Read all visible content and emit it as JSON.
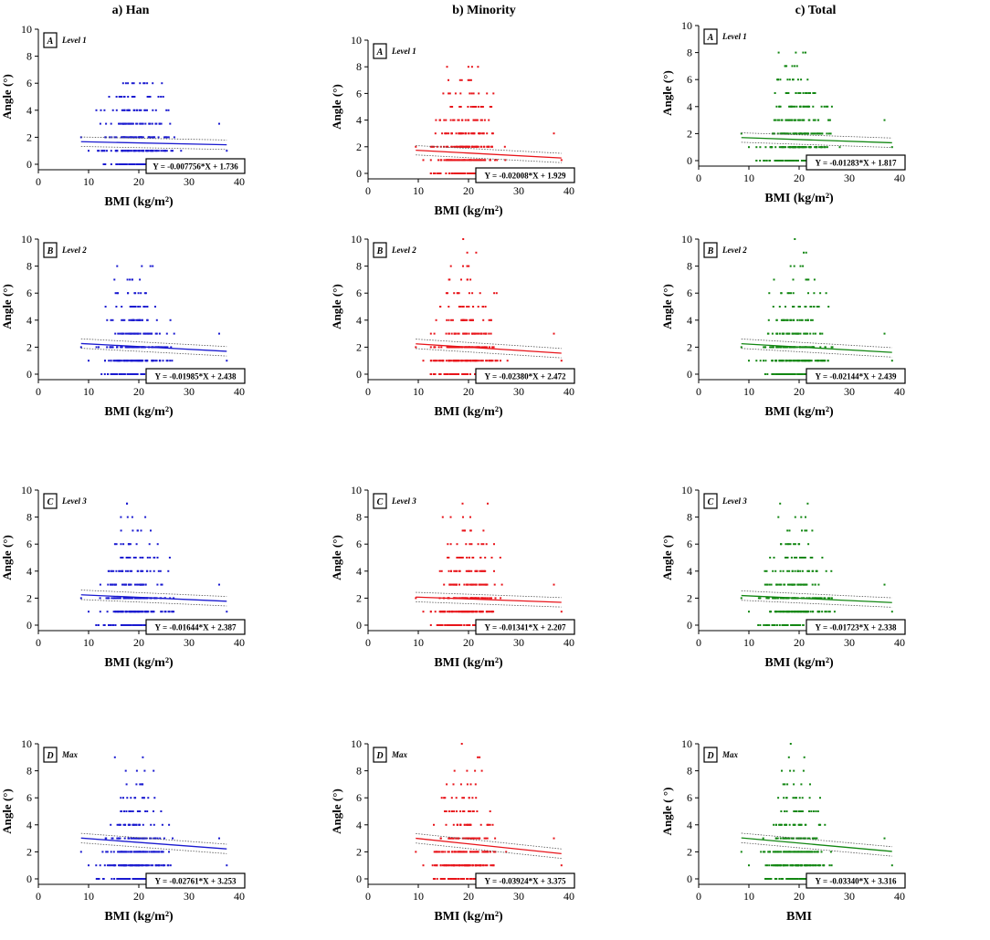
{
  "column_titles": [
    "a) Han",
    "b) Minority",
    "c) Total"
  ],
  "colors": {
    "Han": "#1a1ad0",
    "Minority": "#e8141a",
    "Total": "#128712"
  },
  "chart_data": [
    {
      "type": "scatter",
      "col": 0,
      "row": 0,
      "group": "Han",
      "panel": "A",
      "level": "Level 1",
      "ylabel": "Angle (°)",
      "xlabel": "BMI (kg/m²)",
      "xlim": [
        0,
        40
      ],
      "ylim": [
        0,
        10
      ],
      "xticks": [
        0,
        10,
        20,
        30,
        40
      ],
      "yticks": [
        0,
        2,
        4,
        6,
        8,
        10
      ],
      "slope": -0.007756,
      "intercept": 1.736,
      "x_fit": [
        8.5,
        37.5
      ],
      "x_extent": [
        8.5,
        37.5
      ],
      "y_max_points": 6,
      "equation": "Y = -0.007756*X + 1.736"
    },
    {
      "type": "scatter",
      "col": 1,
      "row": 0,
      "group": "Minority",
      "panel": "A",
      "level": "Level 1",
      "ylabel": "Angle (°)",
      "xlabel": "BMI (kg/m²)",
      "xlim": [
        0,
        40
      ],
      "ylim": [
        0,
        10
      ],
      "xticks": [
        0,
        10,
        20,
        30,
        40
      ],
      "yticks": [
        0,
        2,
        4,
        6,
        8,
        10
      ],
      "slope": -0.02008,
      "intercept": 1.929,
      "x_fit": [
        9.5,
        38.5
      ],
      "x_extent": [
        9.5,
        38.5
      ],
      "y_max_points": 8,
      "equation": "Y = -0.02008*X + 1.929"
    },
    {
      "type": "scatter",
      "col": 2,
      "row": 0,
      "group": "Total",
      "panel": "A",
      "level": "Level 1",
      "ylabel": "Angle (°)",
      "xlabel": "BMI (kg/m²)",
      "xlim": [
        0,
        40
      ],
      "ylim": [
        0,
        10
      ],
      "xticks": [
        0,
        10,
        20,
        30,
        40
      ],
      "yticks": [
        0,
        2,
        4,
        6,
        8,
        10
      ],
      "slope": -0.01283,
      "intercept": 1.817,
      "x_fit": [
        8.5,
        38.5
      ],
      "x_extent": [
        8.5,
        38.5
      ],
      "y_max_points": 8,
      "equation": "Y = -0.01283*X + 1.817"
    },
    {
      "type": "scatter",
      "col": 0,
      "row": 1,
      "group": "Han",
      "panel": "B",
      "level": "Level 2",
      "ylabel": "Angle (°)",
      "xlabel": "BMI (kg/m²)",
      "xlim": [
        0,
        40
      ],
      "ylim": [
        0,
        10
      ],
      "xticks": [
        0,
        10,
        20,
        30,
        40
      ],
      "yticks": [
        0,
        2,
        4,
        6,
        8,
        10
      ],
      "slope": -0.01985,
      "intercept": 2.438,
      "x_fit": [
        8.5,
        37.5
      ],
      "x_extent": [
        8.5,
        37.5
      ],
      "y_max_points": 8,
      "equation": "Y = -0.01985*X + 2.438"
    },
    {
      "type": "scatter",
      "col": 1,
      "row": 1,
      "group": "Minority",
      "panel": "B",
      "level": "Level 2",
      "ylabel": "Angle (°)",
      "xlabel": "BMI (kg/m²)",
      "xlim": [
        0,
        40
      ],
      "ylim": [
        0,
        10
      ],
      "xticks": [
        0,
        10,
        20,
        30,
        40
      ],
      "yticks": [
        0,
        2,
        4,
        6,
        8,
        10
      ],
      "slope": -0.0238,
      "intercept": 2.472,
      "x_fit": [
        9.5,
        38.5
      ],
      "x_extent": [
        9.5,
        38.5
      ],
      "y_max_points": 10,
      "equation": "Y = -0.02380*X + 2.472"
    },
    {
      "type": "scatter",
      "col": 2,
      "row": 1,
      "group": "Total",
      "panel": "B",
      "level": "Level 2",
      "ylabel": "Angle (°)",
      "xlabel": "BMI (kg/m²)",
      "xlim": [
        0,
        40
      ],
      "ylim": [
        0,
        10
      ],
      "xticks": [
        0,
        10,
        20,
        30,
        40
      ],
      "yticks": [
        0,
        2,
        4,
        6,
        8,
        10
      ],
      "slope": -0.02144,
      "intercept": 2.439,
      "x_fit": [
        8.5,
        38.5
      ],
      "x_extent": [
        8.5,
        38.5
      ],
      "y_max_points": 10,
      "equation": "Y = -0.02144*X + 2.439"
    },
    {
      "type": "scatter",
      "col": 0,
      "row": 2,
      "group": "Han",
      "panel": "C",
      "level": "Level 3",
      "ylabel": "Angle (°)",
      "xlabel": "BMI (kg/m²)",
      "xlim": [
        0,
        40
      ],
      "ylim": [
        0,
        10
      ],
      "xticks": [
        0,
        10,
        20,
        30,
        40
      ],
      "yticks": [
        0,
        2,
        4,
        6,
        8,
        10
      ],
      "slope": -0.01644,
      "intercept": 2.387,
      "x_fit": [
        8.5,
        37.5
      ],
      "x_extent": [
        8.5,
        37.5
      ],
      "y_max_points": 9,
      "equation": "Y = -0.01644*X + 2.387"
    },
    {
      "type": "scatter",
      "col": 1,
      "row": 2,
      "group": "Minority",
      "panel": "C",
      "level": "Level 3",
      "ylabel": "Angle (°)",
      "xlabel": "BMI (kg/m²)",
      "xlim": [
        0,
        40
      ],
      "ylim": [
        0,
        10
      ],
      "xticks": [
        0,
        10,
        20,
        30,
        40
      ],
      "yticks": [
        0,
        2,
        4,
        6,
        8,
        10
      ],
      "slope": -0.01341,
      "intercept": 2.207,
      "x_fit": [
        9.5,
        38.5
      ],
      "x_extent": [
        9.5,
        38.5
      ],
      "y_max_points": 9,
      "equation": "Y = -0.01341*X + 2.207"
    },
    {
      "type": "scatter",
      "col": 2,
      "row": 2,
      "group": "Total",
      "panel": "C",
      "level": "Level 3",
      "ylabel": "Angle (°)",
      "xlabel": "BMI (kg/m²)",
      "xlim": [
        0,
        40
      ],
      "ylim": [
        0,
        10
      ],
      "xticks": [
        0,
        10,
        20,
        30,
        40
      ],
      "yticks": [
        0,
        2,
        4,
        6,
        8,
        10
      ],
      "slope": -0.01723,
      "intercept": 2.338,
      "x_fit": [
        8.5,
        38.5
      ],
      "x_extent": [
        8.5,
        38.5
      ],
      "y_max_points": 9,
      "equation": "Y = -0.01723*X + 2.338"
    },
    {
      "type": "scatter",
      "col": 0,
      "row": 3,
      "group": "Han",
      "panel": "D",
      "level": "Max",
      "ylabel": "Angle (°)",
      "xlabel": "BMI (kg/m²)",
      "xlim": [
        0,
        40
      ],
      "ylim": [
        0,
        10
      ],
      "xticks": [
        0,
        10,
        20,
        30,
        40
      ],
      "yticks": [
        0,
        2,
        4,
        6,
        8,
        10
      ],
      "slope": -0.02761,
      "intercept": 3.253,
      "x_fit": [
        8.5,
        37.5
      ],
      "x_extent": [
        8.5,
        37.5
      ],
      "y_max_points": 9,
      "equation": "Y = -0.02761*X + 3.253"
    },
    {
      "type": "scatter",
      "col": 1,
      "row": 3,
      "group": "Minority",
      "panel": "D",
      "level": "Max",
      "ylabel": "Angle (°)",
      "xlabel": "BMI (kg/m²)",
      "xlim": [
        0,
        40
      ],
      "ylim": [
        0,
        10
      ],
      "xticks": [
        0,
        10,
        20,
        30,
        40
      ],
      "yticks": [
        0,
        2,
        4,
        6,
        8,
        10
      ],
      "slope": -0.03924,
      "intercept": 3.375,
      "x_fit": [
        9.5,
        38.5
      ],
      "x_extent": [
        9.5,
        38.5
      ],
      "y_max_points": 10,
      "equation": "Y = -0.03924*X + 3.375"
    },
    {
      "type": "scatter",
      "col": 2,
      "row": 3,
      "group": "Total",
      "panel": "D",
      "level": "Max",
      "ylabel": "Angle ( °)",
      "xlabel": "BMI",
      "xlim": [
        0,
        40
      ],
      "ylim": [
        0,
        10
      ],
      "xticks": [
        0,
        10,
        20,
        30,
        40
      ],
      "yticks": [
        0,
        2,
        4,
        6,
        8,
        10
      ],
      "slope": -0.0334,
      "intercept": 3.316,
      "x_fit": [
        8.5,
        38.5
      ],
      "x_extent": [
        8.5,
        38.5
      ],
      "y_max_points": 10,
      "equation": "Y = -0.03340*X + 3.316"
    }
  ]
}
